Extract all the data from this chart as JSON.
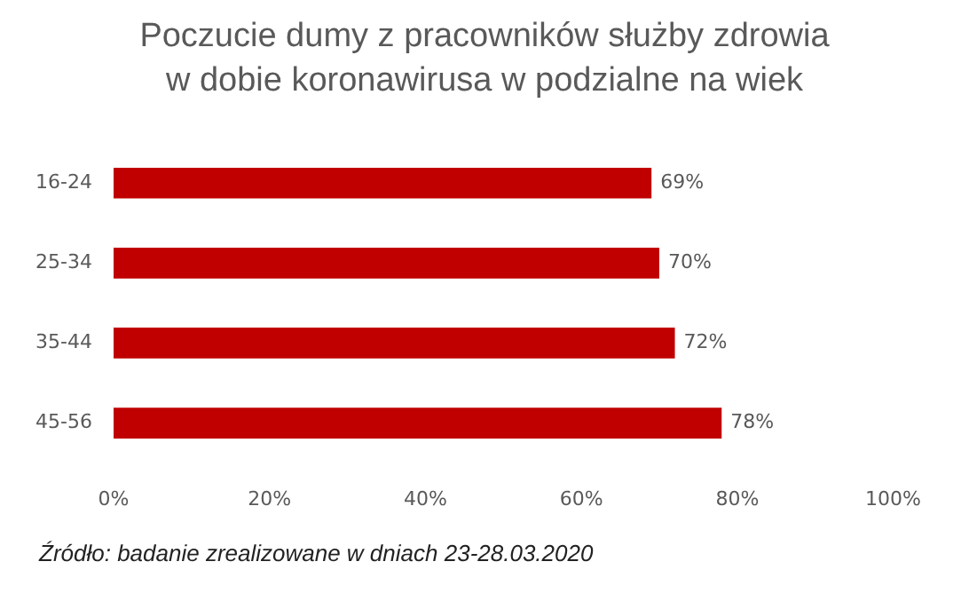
{
  "chart_data": {
    "type": "bar",
    "orientation": "horizontal",
    "title": "Poczucie dumy z pracowników służby zdrowia\nw dobie koronawirusa w podzialne na wiek",
    "categories": [
      "16-24",
      "25-34",
      "35-44",
      "45-56"
    ],
    "values": [
      69,
      70,
      72,
      78
    ],
    "value_labels": [
      "69%",
      "70%",
      "72%",
      "78%"
    ],
    "color": "#c00000",
    "xlim": [
      0,
      100
    ],
    "xticks": [
      {
        "value": 0,
        "label": "0%"
      },
      {
        "value": 20,
        "label": "20%"
      },
      {
        "value": 40,
        "label": "40%"
      },
      {
        "value": 60,
        "label": "60%"
      },
      {
        "value": 80,
        "label": "80%"
      },
      {
        "value": 100,
        "label": "100%"
      }
    ],
    "grid": false,
    "annotations": [
      "Źródło: badanie zrealizowane  w dniach 23-28.03.2020"
    ]
  }
}
